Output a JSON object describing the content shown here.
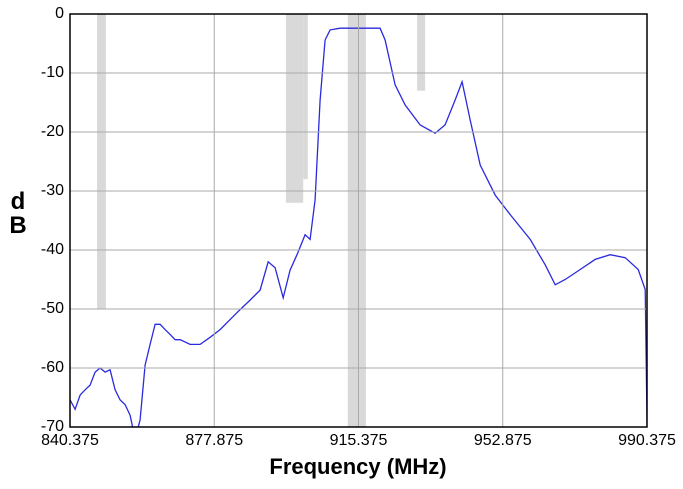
{
  "chart_data": {
    "type": "line",
    "xlabel": "Frequency (MHz)",
    "ylabel": "dB",
    "xlim": [
      840.375,
      990.375
    ],
    "xticks": [
      840.375,
      877.875,
      915.375,
      952.875,
      990.375
    ],
    "ylim": [
      -70,
      0
    ],
    "yticks": [
      0,
      -10,
      -20,
      -30,
      -40,
      -50,
      -60,
      -70
    ],
    "grid": true,
    "region_color": "#d9d9d9",
    "regions": [
      {
        "x": [
          847.4,
          849.7
        ],
        "y": -50
      },
      {
        "x": [
          896.5,
          901.0
        ],
        "y": -32
      },
      {
        "x": [
          901.0,
          902.2
        ],
        "y": -28
      },
      {
        "x": [
          912.6,
          917.3
        ],
        "y": -70
      },
      {
        "x": [
          930.6,
          932.7
        ],
        "y": -13
      }
    ],
    "series": [
      {
        "color": "#2a2ae0",
        "x": [
          840.4,
          841.7,
          843.0,
          844.3,
          845.6,
          846.9,
          848.2,
          849.5,
          850.8,
          852.1,
          853.4,
          854.7,
          856.0,
          857.3,
          858.6,
          859.9,
          861.2,
          862.5,
          863.8,
          865.1,
          866.4,
          867.7,
          869.0,
          871.6,
          874.2,
          876.8,
          879.4,
          882.0,
          884.6,
          887.2,
          889.8,
          891.9,
          893.7,
          895.8,
          897.6,
          899.4,
          901.5,
          902.8,
          904.1,
          905.4,
          906.7,
          908.0,
          910.6,
          915.8,
          921.0,
          922.3,
          924.9,
          927.5,
          931.4,
          935.3,
          937.9,
          940.5,
          942.3,
          944.4,
          947.0,
          950.9,
          954.8,
          960.0,
          963.9,
          966.5,
          969.1,
          973.0,
          976.9,
          980.8,
          984.7,
          988.1,
          989.9,
          990.4
        ],
        "values": [
          -65.4,
          -67,
          -64.6,
          -63.7,
          -62.9,
          -60.7,
          -60,
          -60.7,
          -60.3,
          -63.7,
          -65.4,
          -66.2,
          -68,
          -72,
          -68.8,
          -59.5,
          -56,
          -52.6,
          -52.6,
          -53.5,
          -54.3,
          -55.2,
          -55.2,
          -56,
          -56,
          -54.8,
          -53.5,
          -51.8,
          -50.1,
          -48.5,
          -46.8,
          -42,
          -43,
          -48.1,
          -43.4,
          -40.8,
          -37.4,
          -38.2,
          -31.5,
          -14.6,
          -4.4,
          -2.7,
          -2.4,
          -2.4,
          -2.4,
          -4.4,
          -12,
          -15.4,
          -18.8,
          -20.2,
          -18.8,
          -14.6,
          -11.5,
          -17.9,
          -25.6,
          -30.7,
          -34,
          -38.2,
          -42.5,
          -45.9,
          -45,
          -43.3,
          -41.6,
          -40.8,
          -41.3,
          -43.3,
          -46.7,
          -70
        ]
      }
    ]
  }
}
